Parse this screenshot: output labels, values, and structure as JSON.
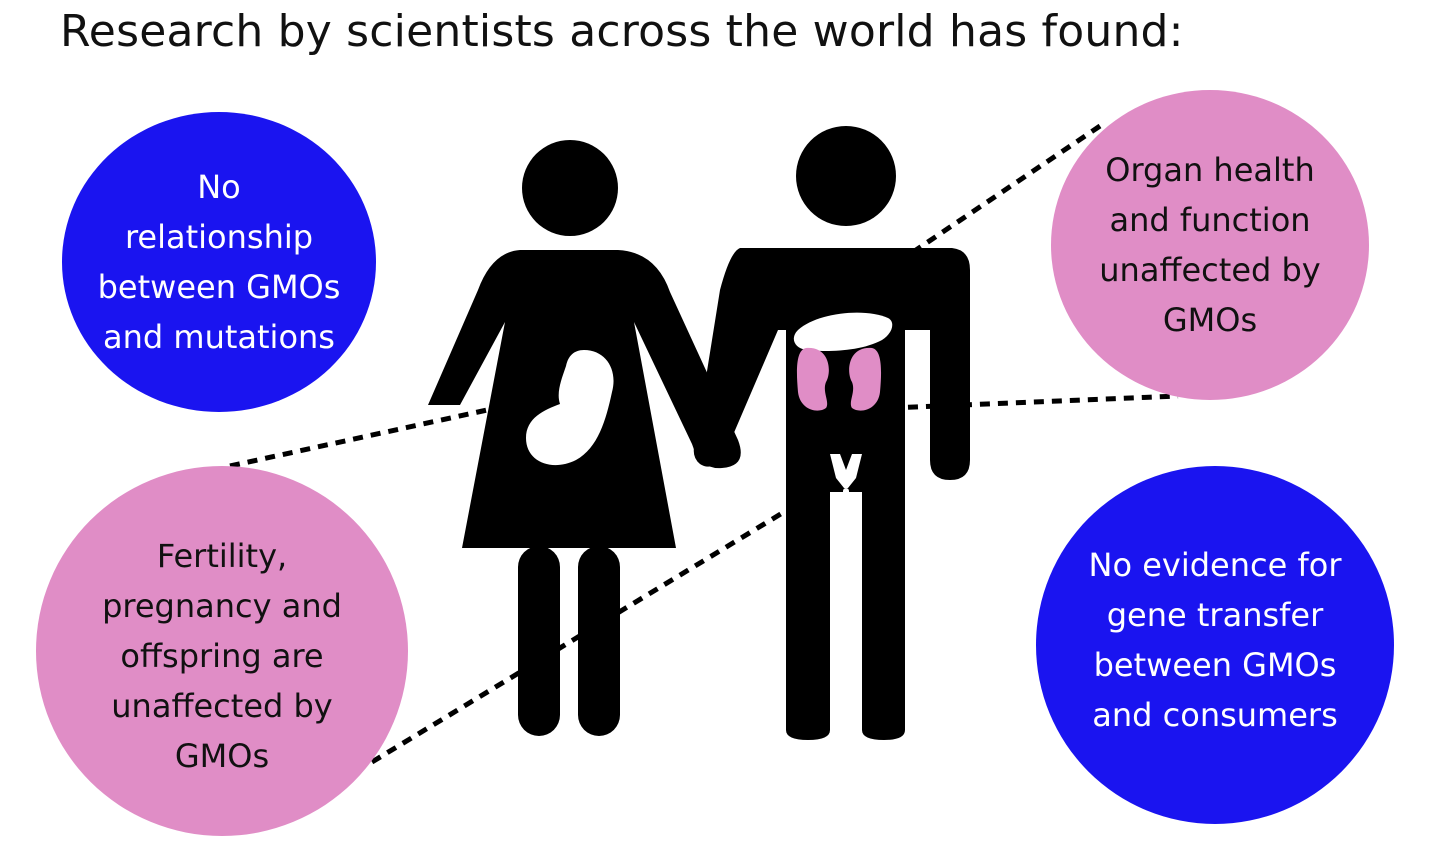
{
  "title": "Research by scientists across the world has found:",
  "colors": {
    "blue_bubble": "#1a14f0",
    "pink_bubble": "#e08dc6",
    "figure": "#000000",
    "kidney": "#e08dc6",
    "organ_white": "#ffffff",
    "blue_text": "#ffffff",
    "pink_text": "#111111"
  },
  "bubbles": {
    "mutations": {
      "lines": [
        "No",
        "relationship",
        "between GMOs",
        "and mutations"
      ]
    },
    "organ": {
      "lines": [
        "Organ health",
        "and function",
        "unaffected by",
        "GMOs"
      ]
    },
    "fertility": {
      "lines": [
        "Fertility,",
        "pregnancy and",
        "offspring are",
        "unaffected by",
        "GMOs"
      ]
    },
    "gene": {
      "lines": [
        "No evidence for",
        "gene transfer",
        "between GMOs",
        "and consumers"
      ]
    }
  },
  "icons": {
    "woman": "woman-figure-icon",
    "man": "man-figure-icon",
    "fetus": "fetus-icon",
    "liver": "liver-icon",
    "kidneys": "kidney-icon",
    "reproductive": "reproductive-organ-icon"
  }
}
